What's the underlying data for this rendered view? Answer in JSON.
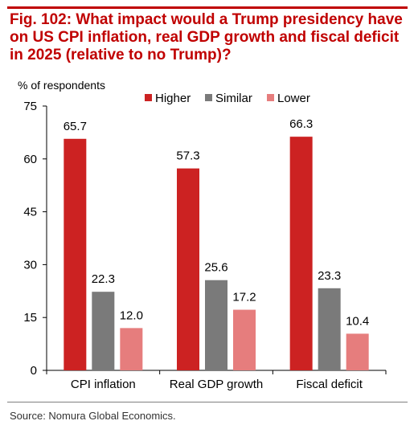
{
  "figure": {
    "title": "Fig. 102: What impact would a Trump presidency have on US CPI inflation, real GDP growth and fiscal deficit in 2025 (relative to no Trump)?",
    "source": "Source: Nomura Global Economics."
  },
  "colors": {
    "title": "#c00000",
    "rule": "#c00000"
  },
  "chart_data": {
    "type": "bar",
    "ylabel": "% of respondents",
    "ylim": [
      0,
      75
    ],
    "yticks": [
      0,
      15,
      30,
      45,
      60,
      75
    ],
    "grid": false,
    "legend_position": "top",
    "categories": [
      "CPI inflation",
      "Real GDP growth",
      "Fiscal deficit"
    ],
    "series": [
      {
        "name": "Higher",
        "color": "#cc2222",
        "values": [
          65.7,
          57.3,
          66.3
        ]
      },
      {
        "name": "Similar",
        "color": "#7a7a7a",
        "values": [
          22.3,
          25.6,
          23.3
        ]
      },
      {
        "name": "Lower",
        "color": "#e67d7d",
        "values": [
          12.0,
          17.2,
          10.4
        ]
      }
    ]
  }
}
